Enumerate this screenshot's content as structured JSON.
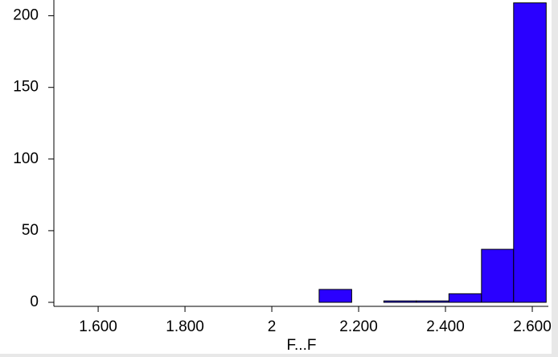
{
  "chart_data": {
    "type": "histogram",
    "x_label": "F...F",
    "bins": [
      2.109,
      2.184,
      2.258,
      2.333,
      2.408,
      2.483,
      2.557,
      2.632
    ],
    "values": [
      9,
      0,
      1,
      1,
      6,
      37,
      209
    ],
    "color": "#2a00ff",
    "xlim": [
      1.498,
      2.637
    ],
    "xticks": [
      {
        "value": 1.6,
        "label": "1.600"
      },
      {
        "value": 1.8,
        "label": "1.800"
      },
      2,
      {
        "value": 2.2,
        "label": "2.200"
      },
      {
        "value": 2.4,
        "label": "2.400"
      },
      {
        "value": 2.6,
        "label": "2.600"
      }
    ],
    "ylim": [
      0,
      211
    ],
    "yticks": [
      0,
      50,
      100,
      150,
      200
    ]
  }
}
